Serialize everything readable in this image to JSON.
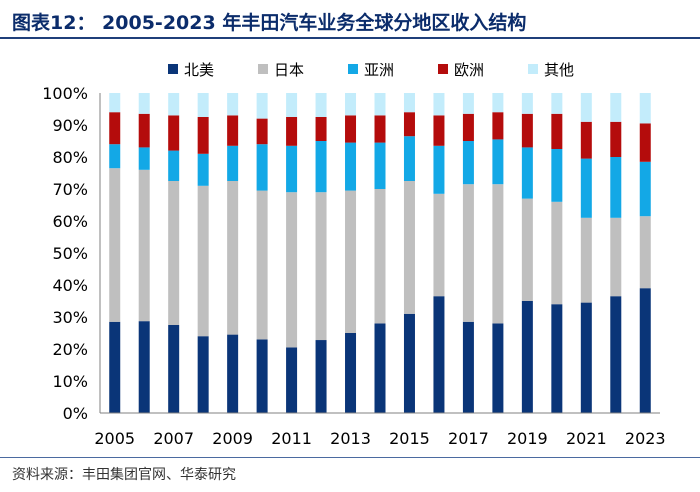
{
  "title": "图表12：  2005-2023 年丰田汽车业务全球分地区收入结构",
  "source": "资料来源：丰田集团官网、华泰研究",
  "chart_data": {
    "type": "bar",
    "stacked": true,
    "percent_scale": true,
    "categories": [
      "2005",
      "2006",
      "2007",
      "2008",
      "2009",
      "2010",
      "2011",
      "2012",
      "2013",
      "2014",
      "2015",
      "2016",
      "2017",
      "2018",
      "2019",
      "2020",
      "2021",
      "2022",
      "2023"
    ],
    "x_tick_labels": [
      "2005",
      "2007",
      "2009",
      "2011",
      "2013",
      "2015",
      "2017",
      "2019",
      "2021",
      "2023"
    ],
    "y_tick_labels": [
      "0%",
      "10%",
      "20%",
      "30%",
      "40%",
      "50%",
      "60%",
      "70%",
      "80%",
      "90%",
      "100%"
    ],
    "ylim": [
      0,
      100
    ],
    "legend_position": "top",
    "series": [
      {
        "name": "北美",
        "color": "#0a3578",
        "values": [
          28.5,
          28.7,
          27.5,
          24.0,
          24.5,
          23.0,
          20.5,
          22.8,
          25.0,
          28.0,
          31.0,
          36.5,
          28.5,
          28.0,
          35.0,
          34.0,
          34.5,
          36.5,
          39.0
        ]
      },
      {
        "name": "日本",
        "color": "#bfbfbf",
        "values": [
          48.0,
          47.3,
          45.0,
          47.0,
          48.0,
          46.5,
          48.5,
          46.2,
          44.5,
          42.0,
          41.5,
          32.0,
          43.0,
          43.5,
          32.0,
          32.0,
          26.5,
          24.5,
          22.5
        ]
      },
      {
        "name": "亚洲",
        "color": "#13a8e6",
        "values": [
          7.5,
          7.0,
          9.5,
          10.0,
          11.0,
          14.5,
          14.5,
          16.0,
          15.0,
          14.5,
          14.0,
          15.0,
          13.5,
          14.0,
          16.0,
          16.5,
          18.5,
          19.0,
          17.0
        ]
      },
      {
        "name": "欧洲",
        "color": "#b40c0c",
        "values": [
          10.0,
          10.5,
          11.0,
          11.5,
          9.5,
          8.0,
          9.0,
          7.5,
          8.5,
          8.5,
          7.5,
          9.5,
          8.5,
          8.5,
          10.5,
          11.0,
          11.5,
          11.0,
          12.0
        ]
      },
      {
        "name": "其他",
        "color": "#c3ecfb",
        "values": [
          6.0,
          6.5,
          7.0,
          7.5,
          7.0,
          8.0,
          7.5,
          7.5,
          7.0,
          7.0,
          6.0,
          7.0,
          6.5,
          6.0,
          6.5,
          6.5,
          9.0,
          9.0,
          9.5
        ]
      }
    ]
  }
}
